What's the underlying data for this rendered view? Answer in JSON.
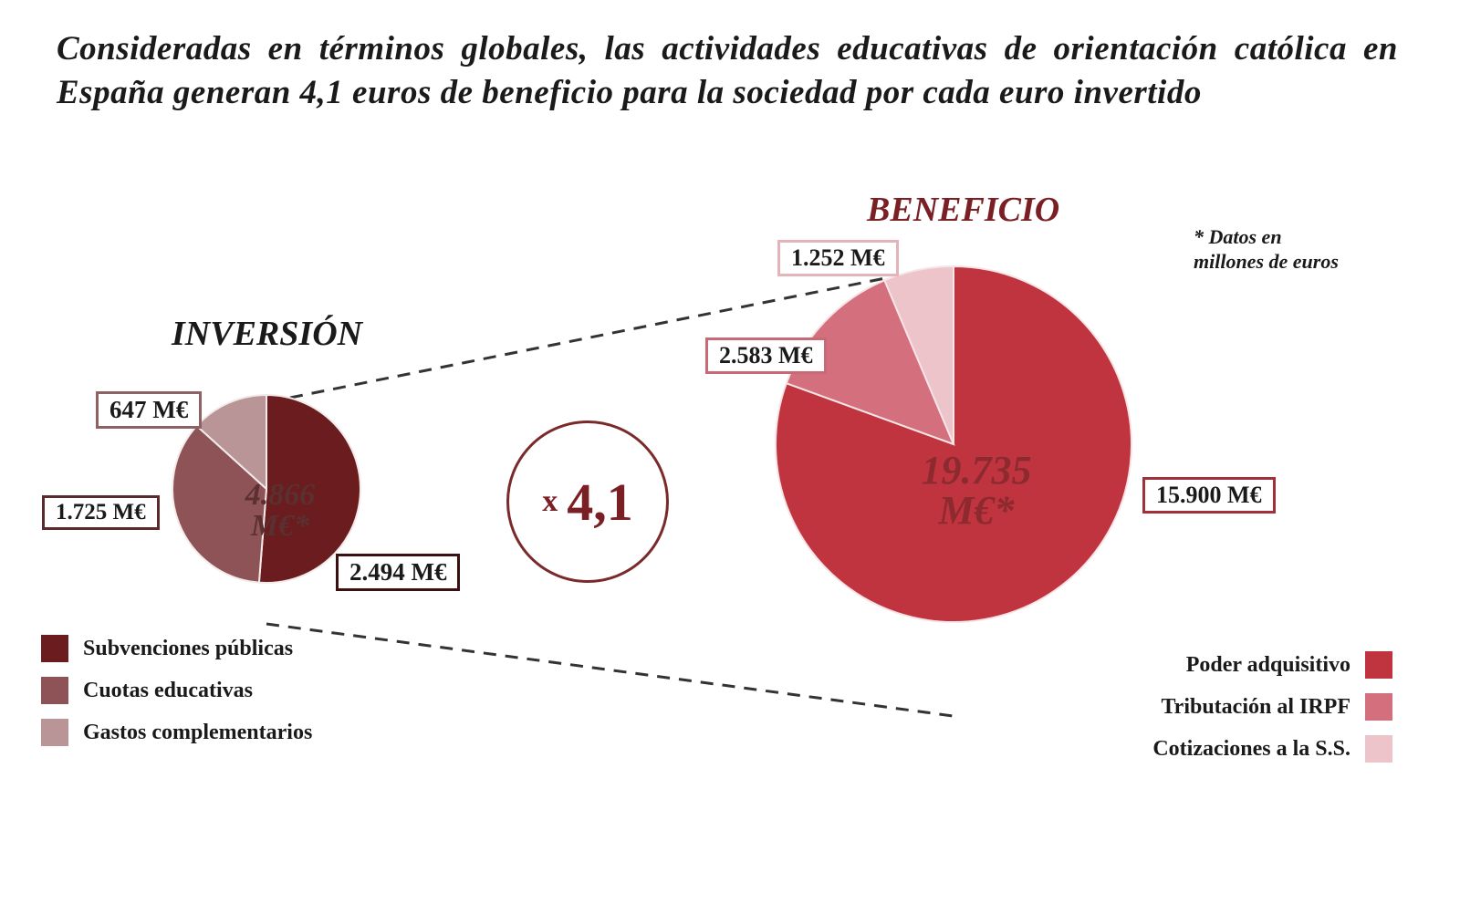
{
  "title": "Consideradas en términos globales, las actividades educativas de orientación católica en España generan 4,1 euros de beneficio para la sociedad por cada euro invertido",
  "note": "* Datos en millones de euros",
  "multiplier": {
    "prefix": "x",
    "value": "4,1"
  },
  "chart_data": [
    {
      "type": "pie",
      "title": "INVERSIÓN",
      "center_label": [
        "4.866",
        "M€*"
      ],
      "total": 4866,
      "categories": [
        "Subvenciones públicas",
        "Cuotas educativas",
        "Gastos complementarios"
      ],
      "values": [
        2494,
        1725,
        647
      ],
      "labels": [
        "2.494 M€",
        "1.725 M€",
        "647 M€"
      ],
      "colors": [
        "#6b1c1e",
        "#8e5356",
        "#b99597"
      ],
      "legend_position": "bottom-left"
    },
    {
      "type": "pie",
      "title": "BENEFICIO",
      "center_label": [
        "19.735",
        "M€*"
      ],
      "total": 19735,
      "categories": [
        "Poder adquisitivo",
        "Tributación al IRPF",
        "Cotizaciones a la S.S."
      ],
      "values": [
        15900,
        2583,
        1252
      ],
      "labels": [
        "15.900 M€",
        "2.583 M€",
        "1.252 M€"
      ],
      "colors": [
        "#c0343f",
        "#d46f7d",
        "#ecc4c9"
      ],
      "legend_position": "bottom-right"
    }
  ]
}
